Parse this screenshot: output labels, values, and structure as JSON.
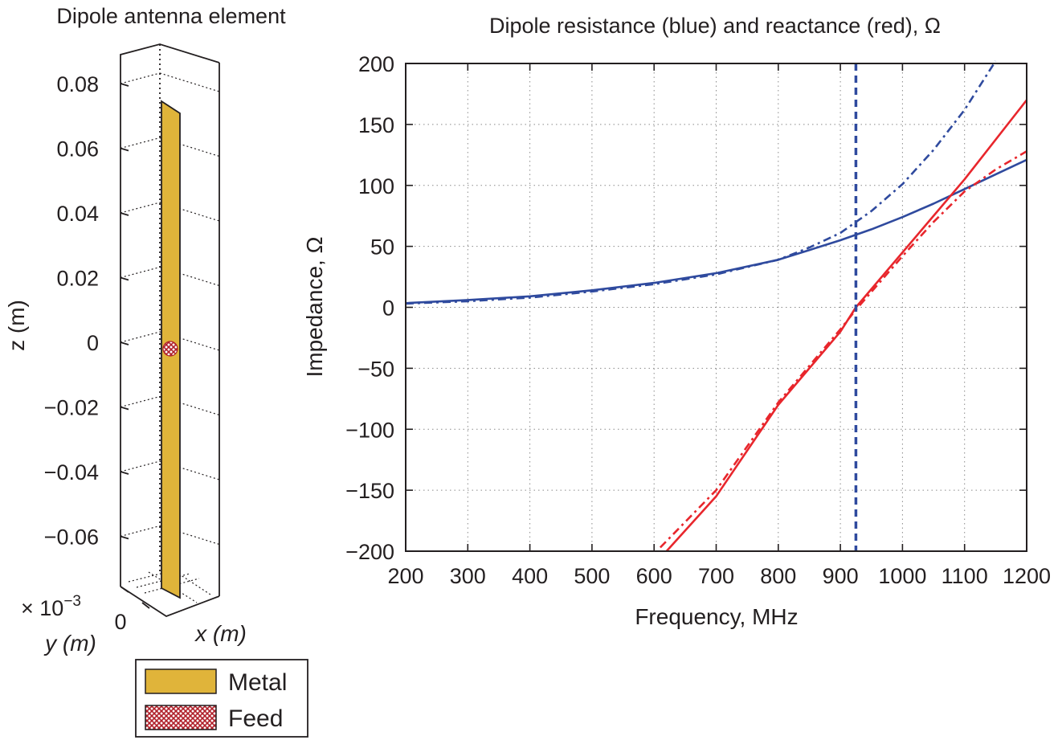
{
  "left_panel": {
    "title": "Dipole antenna element",
    "z_axis_label": "z (m)",
    "y_axis_label": "y (m)",
    "x_axis_label": "x (m)",
    "z_ticks": [
      "0.08",
      "0.06",
      "0.04",
      "0.02",
      "0",
      "−0.02",
      "−0.04",
      "−0.06"
    ],
    "y_tick": "0",
    "exponent_times": "× 10",
    "exponent_power": "−3",
    "legend": [
      {
        "label": "Metal",
        "color": "#e0b43a"
      },
      {
        "label": "Feed",
        "color": "#b0202a"
      }
    ]
  },
  "chart_data": [
    {
      "type": "3d-geometry",
      "title": "Dipole antenna element",
      "zlabel": "z (m)",
      "ylabel": "y (m)",
      "xlabel": "x (m)",
      "z_ticks": [
        0.08,
        0.06,
        0.04,
        0.02,
        0,
        -0.02,
        -0.04,
        -0.06
      ],
      "strip_z_range": [
        -0.075,
        0.075
      ],
      "feed_z": 0,
      "legend": [
        "Metal",
        "Feed"
      ]
    },
    {
      "type": "line",
      "title": "Dipole resistance (blue) and reactance (red), Ω",
      "xlabel": "Frequency, MHz",
      "ylabel": "Impedance, Ω",
      "xlim": [
        200,
        1200
      ],
      "ylim": [
        -200,
        200
      ],
      "x_ticks": [
        200,
        300,
        400,
        500,
        600,
        700,
        800,
        900,
        1000,
        1100,
        1200
      ],
      "y_ticks": [
        200,
        150,
        100,
        50,
        0,
        -50,
        -100,
        -150,
        -200
      ],
      "grid": true,
      "vline_x": 925,
      "series": [
        {
          "color": "#2f4a9e",
          "style": "solid",
          "x": [
            200,
            300,
            400,
            500,
            600,
            700,
            800,
            850,
            900,
            950,
            1000,
            1050,
            1100,
            1150,
            1200
          ],
          "y": [
            3.5,
            6,
            9,
            14,
            20,
            28,
            39,
            47,
            55,
            64,
            74,
            85,
            97,
            109,
            121
          ]
        },
        {
          "color": "#2f4a9e",
          "style": "dashdot",
          "x": [
            200,
            300,
            400,
            500,
            600,
            700,
            800,
            850,
            900,
            950,
            1000,
            1050,
            1100,
            1150
          ],
          "y": [
            3,
            5,
            8,
            13,
            19,
            27,
            39,
            49,
            61,
            79,
            101,
            129,
            162,
            202
          ]
        },
        {
          "color": "#e8262c",
          "style": "solid",
          "x": [
            620,
            700,
            800,
            900,
            925,
            1000,
            1100,
            1200
          ],
          "y": [
            -200,
            -155,
            -80,
            -20,
            0,
            45,
            105,
            170
          ]
        },
        {
          "color": "#e8262c",
          "style": "dashdot",
          "x": [
            610,
            700,
            800,
            900,
            925,
            1000,
            1050,
            1100,
            1150,
            1200
          ],
          "y": [
            -197,
            -150,
            -78,
            -18,
            -2,
            42,
            70,
            95,
            113,
            128
          ]
        }
      ]
    }
  ]
}
